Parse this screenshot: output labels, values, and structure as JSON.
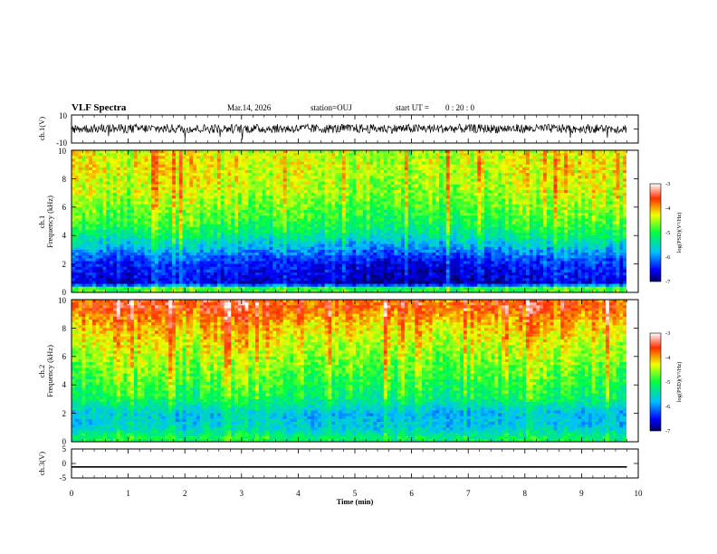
{
  "header": {
    "title": "VLF Spectra",
    "date": "Mar.14, 2026",
    "station": "station=OUJ",
    "start_label": "start  UT =",
    "start_time": "0 : 20 : 0"
  },
  "chart_data": [
    {
      "type": "line",
      "panel": "ch1-waveform",
      "ylabel": "ch.1(V)",
      "ylim": [
        -10,
        10
      ],
      "ytick_labels": [
        "10",
        "-10"
      ],
      "xlim": [
        0,
        10
      ],
      "series": [
        {
          "values": [
            3.6,
            -3.0
          ],
          "description_range": [
            -3.0,
            3.6
          ]
        }
      ],
      "approx_amplitude_range_V": [
        -3,
        3.5
      ]
    },
    {
      "type": "heatmap",
      "panel": "ch1-spectrogram",
      "ylabel_line1": "ch.1",
      "ylabel_line2": "Frequency (kHz)",
      "ylim": [
        0,
        10
      ],
      "ytick_labels": [
        "0",
        "2",
        "4",
        "6",
        "8",
        "10"
      ],
      "xlim": [
        0,
        9.8
      ],
      "colorbar": {
        "label": "log(PSD)(V²/Hz)",
        "range": [
          -7,
          -3
        ],
        "tick_labels": [
          "-3",
          "-4",
          "-5",
          "-6",
          "-7"
        ]
      },
      "profile_freq_kHz": [
        0.3,
        0.6,
        1.0,
        1.5,
        2.0,
        2.5,
        3.0,
        3.5,
        4.0,
        4.5,
        5.0,
        6.0,
        7.0,
        8.0,
        9.0,
        10.0
      ],
      "profile_logpsd": [
        -5.0,
        -6.8,
        -6.7,
        -6.6,
        -6.5,
        -6.3,
        -6.0,
        -5.7,
        -5.4,
        -5.2,
        -5.0,
        -4.8,
        -4.6,
        -4.5,
        -4.4,
        -4.5
      ],
      "time_variation_logpsd": [
        0.2,
        0.0,
        0.3,
        0.1,
        0.1,
        0.0,
        -0.1,
        0.0,
        0.1,
        0.2
      ]
    },
    {
      "type": "heatmap",
      "panel": "ch2-spectrogram",
      "ylabel_line1": "ch.2",
      "ylabel_line2": "Frequency (kHz)",
      "ylim": [
        0,
        10
      ],
      "ytick_labels": [
        "0",
        "2",
        "4",
        "6",
        "8",
        "10"
      ],
      "xlim": [
        0,
        9.8
      ],
      "colorbar": {
        "label": "log(PSD)(V²/Hz)",
        "range": [
          -7,
          -3
        ],
        "tick_labels": [
          "-3",
          "-4",
          "-5",
          "-6",
          "-7"
        ]
      },
      "profile_freq_kHz": [
        0.3,
        1.0,
        2.0,
        2.5,
        3.0,
        4.0,
        5.0,
        6.0,
        7.0,
        8.0,
        9.0,
        9.5,
        10.0
      ],
      "profile_logpsd": [
        -5.2,
        -5.7,
        -5.8,
        -5.5,
        -5.2,
        -5.0,
        -4.8,
        -4.6,
        -4.4,
        -4.2,
        -3.9,
        -3.7,
        -3.8
      ],
      "time_variation_logpsd": [
        0.1,
        0.2,
        0.0,
        0.2,
        0.1,
        0.0,
        0.1,
        -0.1,
        0.1,
        0.0
      ]
    },
    {
      "type": "line",
      "panel": "ch3-waveform",
      "ylabel": "ch.3(V)",
      "ylim": [
        -5,
        5
      ],
      "ytick_labels": [
        "5",
        "0",
        "-5"
      ],
      "xlim": [
        0,
        10
      ],
      "series": [
        {
          "x": [
            0,
            9.8
          ],
          "values": [
            -1.2,
            -1.2
          ]
        }
      ],
      "xlabel": "Time (min)",
      "xtick_labels": [
        "0",
        "1",
        "2",
        "3",
        "4",
        "5",
        "6",
        "7",
        "8",
        "9",
        "10"
      ]
    }
  ]
}
